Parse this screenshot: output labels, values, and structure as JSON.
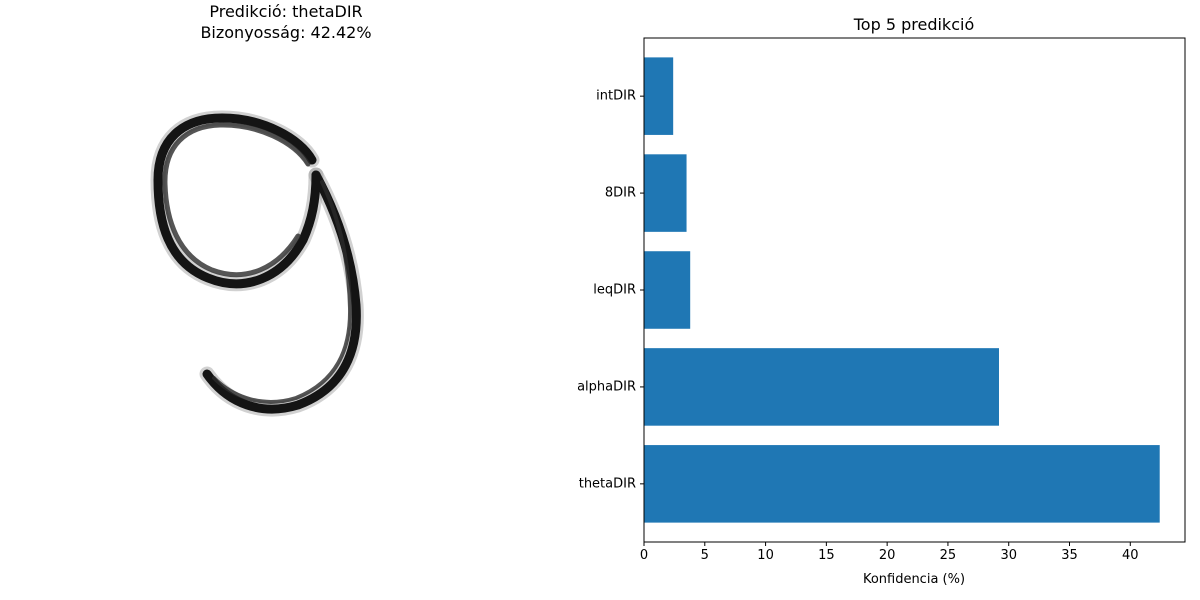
{
  "left_panel": {
    "title_line1": "Predikció: thetaDIR",
    "title_line2": "Bizonyosság: 42.42%",
    "image_description": "handwritten-digit-9"
  },
  "chart_data": {
    "type": "bar",
    "orientation": "horizontal",
    "title": "Top 5 predikció",
    "xlabel": "Konfidencia (%)",
    "ylabel": "",
    "categories": [
      "thetaDIR",
      "alphaDIR",
      "leqDIR",
      "8DIR",
      "intDIR"
    ],
    "values": [
      42.42,
      29.2,
      3.8,
      3.5,
      2.4
    ],
    "xlim": [
      0,
      44.5
    ],
    "xticks": [
      0,
      5,
      10,
      15,
      20,
      25,
      30,
      35,
      40
    ],
    "bar_color": "#1f77b4",
    "grid": false
  }
}
